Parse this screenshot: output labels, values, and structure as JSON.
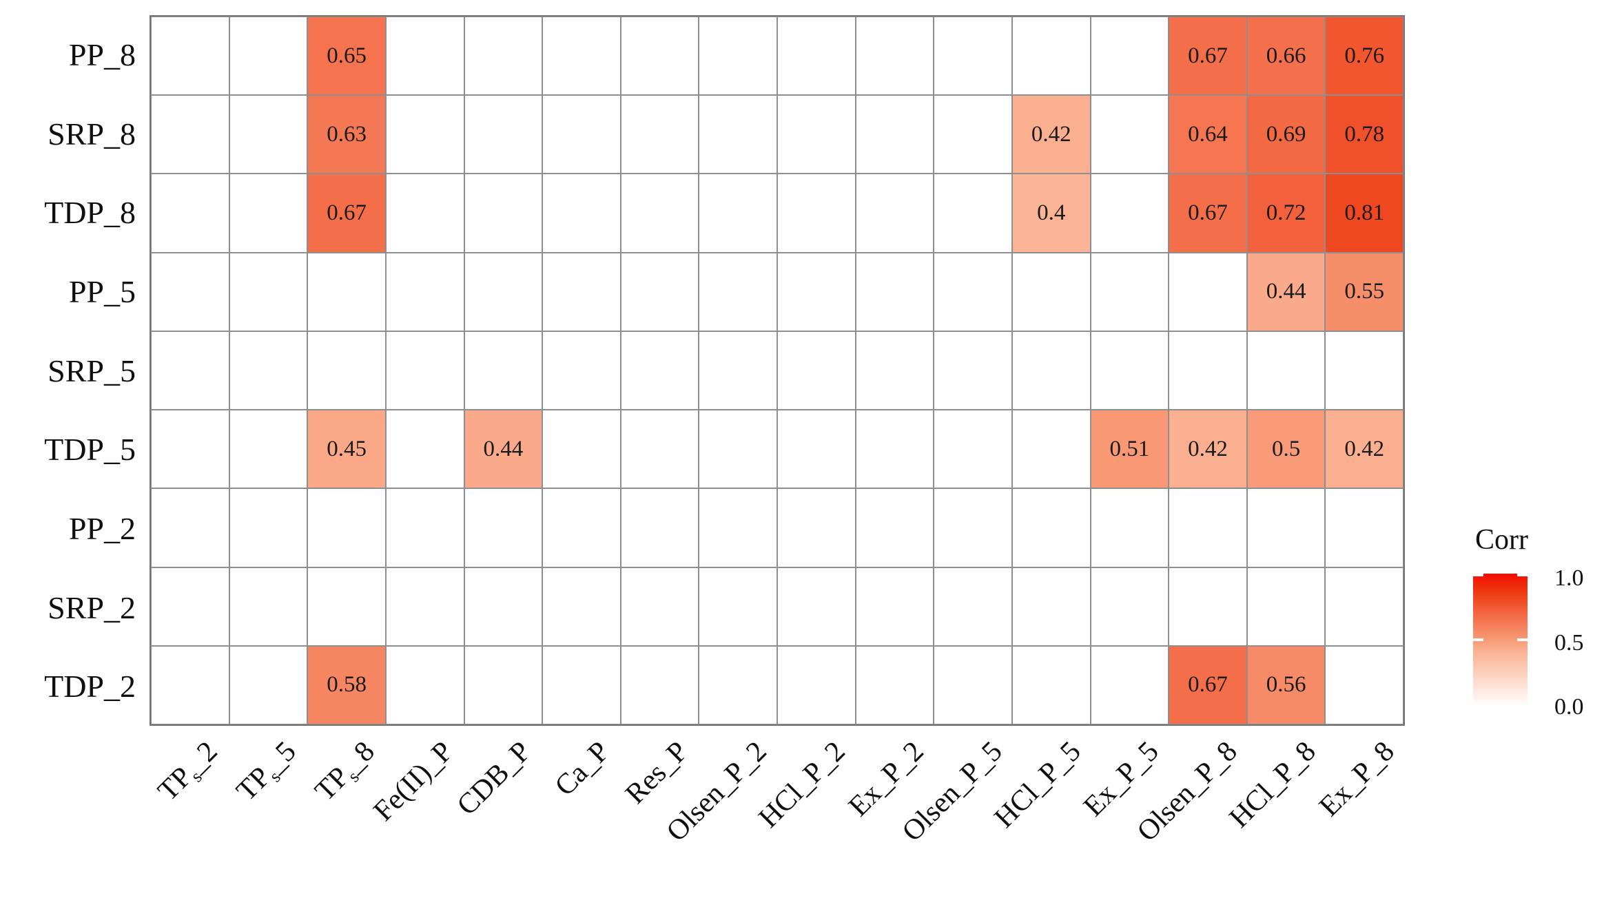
{
  "chart_data": {
    "type": "heatmap",
    "title": "",
    "x_labels": [
      "TP~s~_2",
      "TP~s~_5",
      "TP~s~_8",
      "Fe(II)_P",
      "CDB_P",
      "Ca_P",
      "Res_P",
      "Olsen_P_2",
      "HCl_P_2",
      "Ex_P_2",
      "Olsen_P_5",
      "HCl_P_5",
      "Ex_P_5",
      "Olsen_P_8",
      "HCl_P_8",
      "Ex_P_8"
    ],
    "y_labels": [
      "PP_8",
      "SRP_8",
      "TDP_8",
      "PP_5",
      "SRP_5",
      "TDP_5",
      "PP_2",
      "SRP_2",
      "TDP_2"
    ],
    "values": [
      [
        null,
        null,
        0.65,
        null,
        null,
        null,
        null,
        null,
        null,
        null,
        null,
        null,
        null,
        0.67,
        0.66,
        0.76
      ],
      [
        null,
        null,
        0.63,
        null,
        null,
        null,
        null,
        null,
        null,
        null,
        null,
        0.42,
        null,
        0.64,
        0.69,
        0.78
      ],
      [
        null,
        null,
        0.67,
        null,
        null,
        null,
        null,
        null,
        null,
        null,
        null,
        0.4,
        null,
        0.67,
        0.72,
        0.81
      ],
      [
        null,
        null,
        null,
        null,
        null,
        null,
        null,
        null,
        null,
        null,
        null,
        null,
        null,
        null,
        0.44,
        0.55
      ],
      [
        null,
        null,
        null,
        null,
        null,
        null,
        null,
        null,
        null,
        null,
        null,
        null,
        null,
        null,
        null,
        null
      ],
      [
        null,
        null,
        0.45,
        null,
        0.44,
        null,
        null,
        null,
        null,
        null,
        null,
        null,
        0.51,
        0.42,
        0.5,
        0.42
      ],
      [
        null,
        null,
        null,
        null,
        null,
        null,
        null,
        null,
        null,
        null,
        null,
        null,
        null,
        null,
        null,
        null
      ],
      [
        null,
        null,
        null,
        null,
        null,
        null,
        null,
        null,
        null,
        null,
        null,
        null,
        null,
        null,
        null,
        null
      ],
      [
        null,
        null,
        0.58,
        null,
        null,
        null,
        null,
        null,
        null,
        null,
        null,
        null,
        null,
        0.67,
        0.56,
        null
      ]
    ],
    "value_range": [
      0.0,
      1.0
    ],
    "legend": {
      "title": "Corr",
      "tick_labels": [
        "1.0",
        "0.5",
        "0.0"
      ]
    },
    "layout": {
      "x_label_rotation_deg": 45,
      "legend_position": "right",
      "grid": true
    },
    "colors": {
      "gradient_stops": [
        [
          0.0,
          "#FFFFFF"
        ],
        [
          0.4,
          "#FBB496"
        ],
        [
          0.5,
          "#F89B78"
        ],
        [
          0.6,
          "#F6805C"
        ],
        [
          0.7,
          "#F36641"
        ],
        [
          0.85,
          "#EE3D15"
        ],
        [
          1.0,
          "#F50D00"
        ]
      ],
      "grid_line": "#8E8E8E",
      "outer_border": "#757575",
      "cell_text": "#1B1B1B",
      "axis_text": "#0F0F0F",
      "background": "#FFFFFF"
    }
  }
}
